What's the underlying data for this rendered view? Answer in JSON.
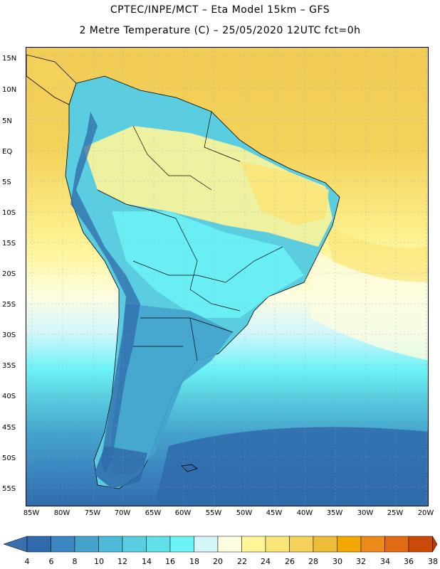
{
  "header": {
    "line1": "CPTEC/INPE/MCT –  Eta Model 15km – GFS",
    "line2": "2 Metre Temperature (C) – 25/05/2020 12UTC fct=0h"
  },
  "map": {
    "lat_labels": [
      "15N",
      "10N",
      "5N",
      "EQ",
      "5S",
      "10S",
      "15S",
      "20S",
      "25S",
      "30S",
      "35S",
      "40S",
      "45S",
      "50S",
      "55S"
    ],
    "lon_labels": [
      "85W",
      "80W",
      "75W",
      "70W",
      "65W",
      "60W",
      "55W",
      "50W",
      "45W",
      "40W",
      "35W",
      "30W",
      "25W",
      "20W"
    ]
  },
  "colorbar": {
    "ticks": [
      "4",
      "6",
      "8",
      "10",
      "12",
      "14",
      "16",
      "18",
      "20",
      "22",
      "24",
      "26",
      "28",
      "30",
      "32",
      "34",
      "36",
      "38"
    ],
    "colors": [
      "#3a6fb0",
      "#2f6aaa",
      "#3b86c0",
      "#44a3cd",
      "#4fb9d8",
      "#5acee0",
      "#62e0ea",
      "#6cf3f6",
      "#d4f6fb",
      "#fefde0",
      "#fef598",
      "#fae57a",
      "#f4d25a",
      "#eebd3a",
      "#f2a800",
      "#ec8a1c",
      "#e16a12",
      "#cc4a08",
      "#b63a06"
    ]
  }
}
